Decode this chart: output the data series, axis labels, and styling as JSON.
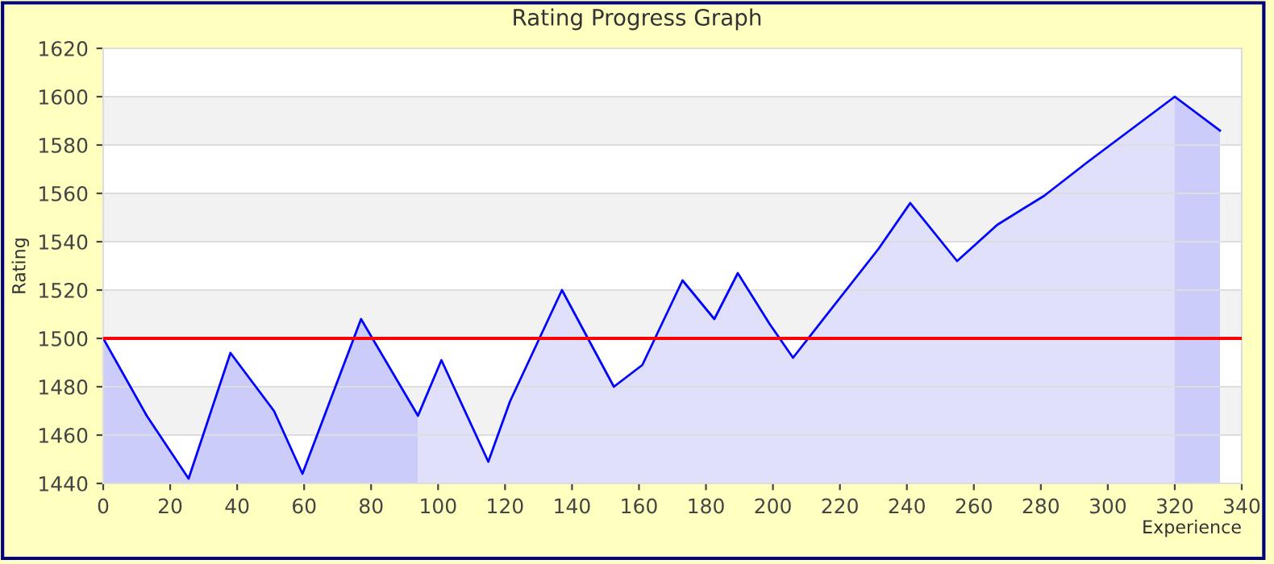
{
  "chart_data": {
    "type": "area",
    "title": "Rating Progress Graph",
    "xlabel": "Experience",
    "ylabel": "Rating",
    "series": [
      {
        "color": "#ccccfa",
        "x": [
          0,
          13,
          25.5,
          38,
          51,
          59.5,
          77,
          94
        ],
        "values": [
          1500,
          1468,
          1442,
          1494,
          1470,
          1444,
          1508,
          1468
        ]
      },
      {
        "color": "#e0e0fa",
        "x": [
          94,
          101,
          115,
          121.5,
          137,
          152.5,
          161,
          173,
          182.5,
          189.5,
          199,
          206,
          231.5,
          241,
          255,
          267,
          281,
          294,
          320
        ],
        "values": [
          1468,
          1491,
          1449,
          1474,
          1520,
          1480,
          1489,
          1524,
          1508,
          1527,
          1506,
          1492,
          1537,
          1556,
          1532,
          1547,
          1559,
          1573,
          1600
        ]
      },
      {
        "color": "#ccccfa",
        "x": [
          320,
          333.5
        ],
        "values": [
          1600,
          1586
        ]
      },
      {
        "type": "line",
        "color": "#0000ff",
        "x": [
          0,
          13,
          25.5,
          38,
          51,
          59.5,
          77,
          94,
          101,
          115,
          121.5,
          137,
          152.5,
          161,
          173,
          182.5,
          189.5,
          199,
          206,
          231.5,
          241,
          255,
          267,
          281,
          294,
          320,
          333.5
        ],
        "values": [
          1500,
          1468,
          1442,
          1494,
          1470,
          1444,
          1508,
          1468,
          1491,
          1449,
          1474,
          1520,
          1480,
          1489,
          1524,
          1508,
          1527,
          1506,
          1492,
          1537,
          1556,
          1532,
          1547,
          1559,
          1573,
          1600,
          1586
        ]
      }
    ],
    "ref_lines": [
      {
        "axis": "y",
        "value": 1500,
        "color": "#ff0000"
      }
    ],
    "xlim": [
      0,
      340
    ],
    "xticks": [
      0,
      20,
      40,
      60,
      80,
      100,
      120,
      140,
      160,
      180,
      200,
      220,
      240,
      260,
      280,
      300,
      320,
      340
    ],
    "ylim": [
      1440,
      1620
    ],
    "yticks": [
      1440,
      1460,
      1480,
      1500,
      1520,
      1540,
      1560,
      1580,
      1600,
      1620
    ],
    "grid": "y"
  }
}
